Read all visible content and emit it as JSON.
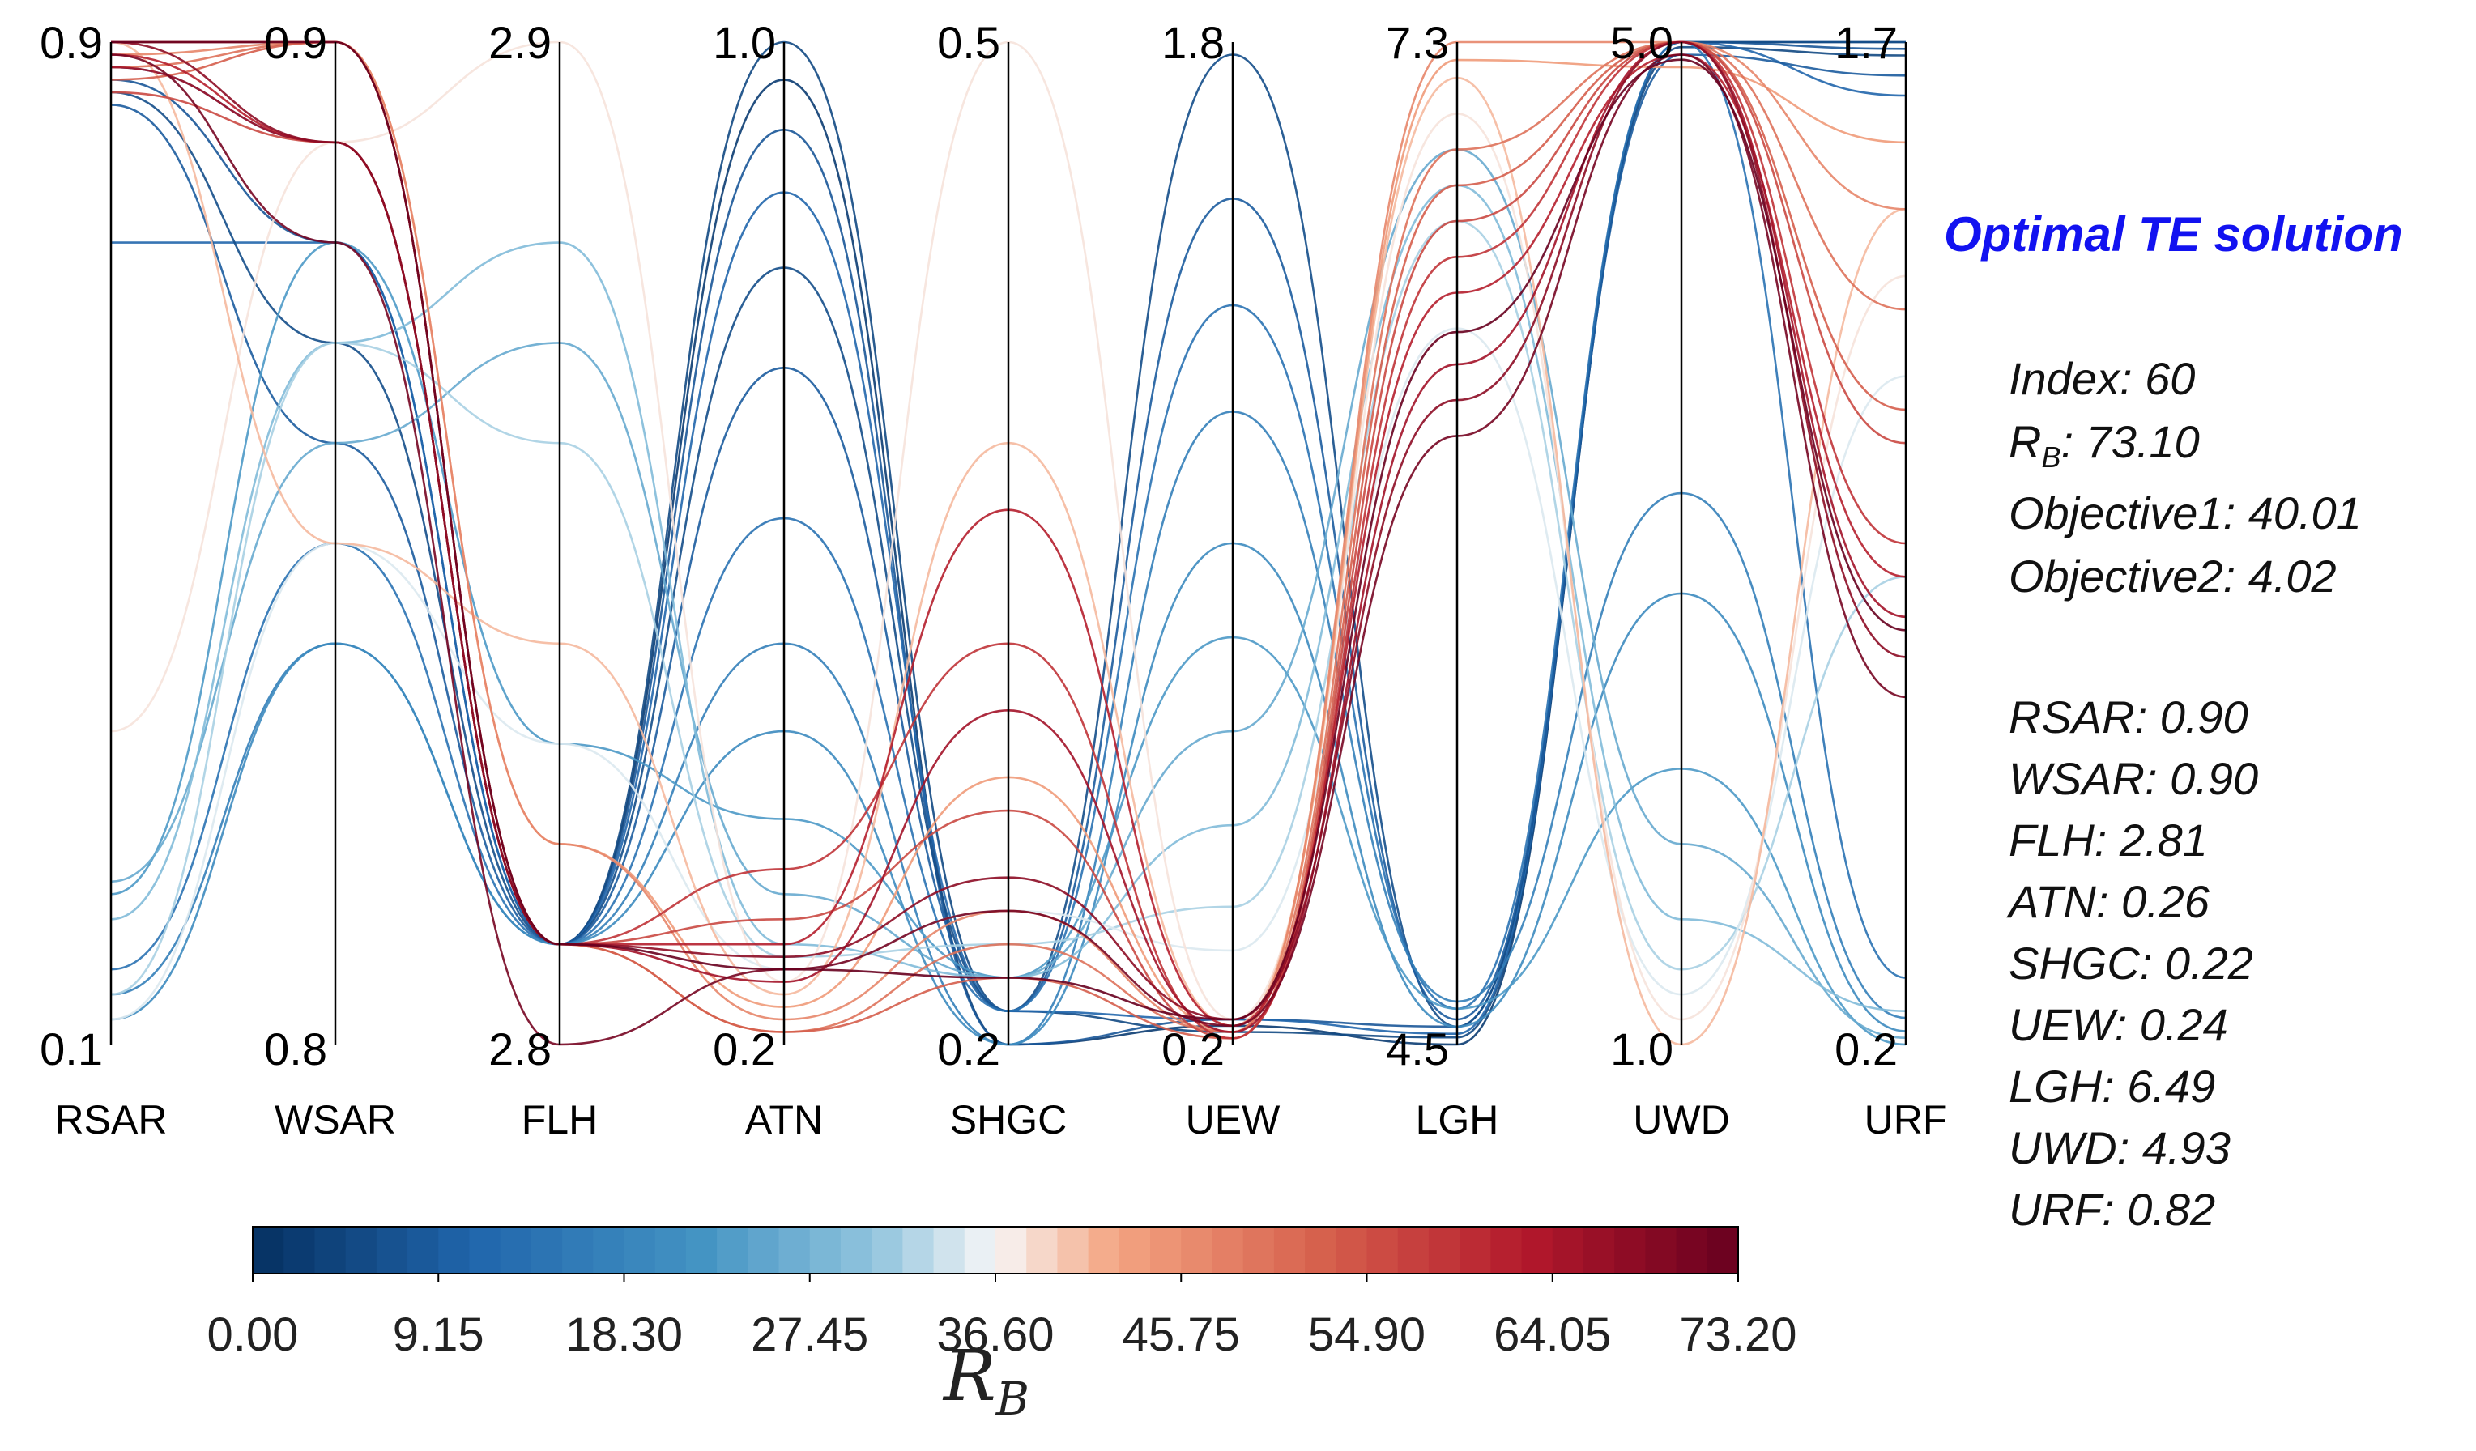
{
  "chart_data": {
    "type": "parallel_coordinates",
    "axes": [
      {
        "name": "RSAR",
        "max": "0.9",
        "min": "0.1",
        "vmax": 0.9,
        "vmin": 0.1
      },
      {
        "name": "WSAR",
        "max": "0.9",
        "min": "0.8",
        "vmax": 0.9,
        "vmin": 0.8
      },
      {
        "name": "FLH",
        "max": "2.9",
        "min": "2.8",
        "vmax": 2.9,
        "vmin": 2.8
      },
      {
        "name": "ATN",
        "max": "1.0",
        "min": "0.2",
        "vmax": 1.0,
        "vmin": 0.2
      },
      {
        "name": "SHGC",
        "max": "0.5",
        "min": "0.2",
        "vmax": 0.5,
        "vmin": 0.2
      },
      {
        "name": "UEW",
        "max": "1.8",
        "min": "0.2",
        "vmax": 1.8,
        "vmin": 0.2
      },
      {
        "name": "LGH",
        "max": "7.3",
        "min": "4.5",
        "vmax": 7.3,
        "vmin": 4.5
      },
      {
        "name": "UWD",
        "max": "5.0",
        "min": "1.0",
        "vmax": 5.0,
        "vmin": 1.0
      },
      {
        "name": "URF",
        "max": "1.7",
        "min": "0.2",
        "vmax": 1.7,
        "vmin": 0.2
      }
    ],
    "colorbar": {
      "ticks": [
        "0.00",
        "9.15",
        "18.30",
        "27.45",
        "36.60",
        "45.75",
        "54.90",
        "64.05",
        "73.20"
      ],
      "min": 0.0,
      "max": 73.2,
      "colormap": "RdBu_r"
    },
    "series": [
      {
        "rb": 2.5,
        "values": [
          0.9,
          0.9,
          2.81,
          0.97,
          0.2,
          0.23,
          4.5,
          5.0,
          1.7
        ]
      },
      {
        "rb": 5.0,
        "values": [
          0.88,
          0.89,
          2.81,
          1.0,
          0.21,
          0.22,
          4.52,
          4.98,
          1.68
        ]
      },
      {
        "rb": 8.0,
        "values": [
          0.87,
          0.88,
          2.81,
          0.93,
          0.2,
          0.24,
          4.55,
          5.0,
          1.69
        ]
      },
      {
        "rb": 11.0,
        "values": [
          0.74,
          0.88,
          2.81,
          0.88,
          0.21,
          0.24,
          4.53,
          5.0,
          1.62
        ]
      },
      {
        "rb": 6.0,
        "values": [
          0.86,
          0.87,
          2.81,
          0.82,
          0.21,
          1.78,
          4.55,
          5.0,
          1.7
        ]
      },
      {
        "rb": 9.0,
        "values": [
          0.85,
          0.86,
          2.81,
          0.74,
          0.21,
          1.55,
          4.57,
          4.95,
          1.65
        ]
      },
      {
        "rb": 14.0,
        "values": [
          0.16,
          0.85,
          2.81,
          0.62,
          0.21,
          1.38,
          4.6,
          5.0,
          0.3
        ]
      },
      {
        "rb": 17.0,
        "values": [
          0.14,
          0.84,
          2.81,
          0.52,
          0.2,
          1.21,
          4.62,
          3.2,
          0.24
        ]
      },
      {
        "rb": 20.0,
        "values": [
          0.12,
          0.84,
          2.81,
          0.45,
          0.2,
          1.0,
          4.55,
          2.8,
          0.22
        ]
      },
      {
        "rb": 23.0,
        "values": [
          0.22,
          0.88,
          2.83,
          0.38,
          0.22,
          0.85,
          4.6,
          2.1,
          0.2
        ]
      },
      {
        "rb": 26.0,
        "values": [
          0.23,
          0.86,
          2.87,
          0.32,
          0.22,
          0.7,
          7.0,
          1.8,
          0.21
        ]
      },
      {
        "rb": 29.0,
        "values": [
          0.2,
          0.87,
          2.88,
          0.28,
          0.22,
          0.55,
          6.9,
          1.5,
          0.25
        ]
      },
      {
        "rb": 32.0,
        "values": [
          0.14,
          0.87,
          2.86,
          0.27,
          0.23,
          0.42,
          6.8,
          1.3,
          0.9
        ]
      },
      {
        "rb": 35.0,
        "values": [
          0.12,
          0.85,
          2.83,
          0.26,
          0.24,
          0.35,
          6.5,
          1.2,
          1.2
        ]
      },
      {
        "rb": 38.0,
        "values": [
          0.35,
          0.89,
          2.9,
          0.25,
          0.5,
          0.24,
          7.1,
          1.1,
          1.35
        ]
      },
      {
        "rb": 41.0,
        "values": [
          0.9,
          0.85,
          2.84,
          0.24,
          0.38,
          0.23,
          7.2,
          1.0,
          1.45
        ]
      },
      {
        "rb": 44.0,
        "values": [
          0.9,
          0.9,
          2.82,
          0.23,
          0.28,
          0.22,
          7.25,
          4.9,
          1.55
        ]
      },
      {
        "rb": 47.0,
        "values": [
          0.89,
          0.9,
          2.82,
          0.22,
          0.24,
          0.22,
          7.3,
          5.0,
          1.45
        ]
      },
      {
        "rb": 50.0,
        "values": [
          0.88,
          0.9,
          2.81,
          0.21,
          0.23,
          0.22,
          7.0,
          5.0,
          1.3
        ]
      },
      {
        "rb": 53.0,
        "values": [
          0.87,
          0.9,
          2.81,
          0.21,
          0.22,
          0.21,
          6.9,
          5.0,
          1.15
        ]
      },
      {
        "rb": 56.0,
        "values": [
          0.86,
          0.89,
          2.81,
          0.3,
          0.27,
          0.21,
          6.8,
          5.0,
          1.1
        ]
      },
      {
        "rb": 59.0,
        "values": [
          0.9,
          0.9,
          2.81,
          0.34,
          0.32,
          0.21,
          6.7,
          5.0,
          0.95
        ]
      },
      {
        "rb": 62.0,
        "values": [
          0.89,
          0.89,
          2.81,
          0.28,
          0.36,
          0.23,
          6.6,
          4.95,
          0.9
        ]
      },
      {
        "rb": 65.0,
        "values": [
          0.88,
          0.89,
          2.81,
          0.25,
          0.3,
          0.22,
          6.4,
          5.0,
          0.84
        ]
      },
      {
        "rb": 68.0,
        "values": [
          0.9,
          0.89,
          2.81,
          0.27,
          0.25,
          0.24,
          6.3,
          5.0,
          0.78
        ]
      },
      {
        "rb": 71.0,
        "values": [
          0.89,
          0.88,
          2.8,
          0.26,
          0.24,
          0.23,
          6.2,
          4.95,
          0.72
        ]
      },
      {
        "rb": 73.1,
        "values": [
          0.9,
          0.9,
          2.81,
          0.26,
          0.22,
          0.24,
          6.49,
          4.93,
          0.82
        ]
      }
    ]
  },
  "solution": {
    "title": "Optimal TE solution",
    "index_label": "Index: 60",
    "rb_label_prefix": "R",
    "rb_label_sub": "B",
    "rb_label_value": ": 73.10",
    "objective1": "Objective1: 40.01",
    "objective2": "Objective2: 4.02",
    "params": [
      "RSAR: 0.90",
      "WSAR: 0.90",
      "FLH: 2.81",
      "ATN: 0.26",
      "SHGC: 0.22",
      "UEW: 0.24",
      "LGH: 6.49",
      "UWD: 4.93",
      "URF: 0.82"
    ]
  },
  "colorbar_title_main": "R",
  "colorbar_title_sub": "B"
}
